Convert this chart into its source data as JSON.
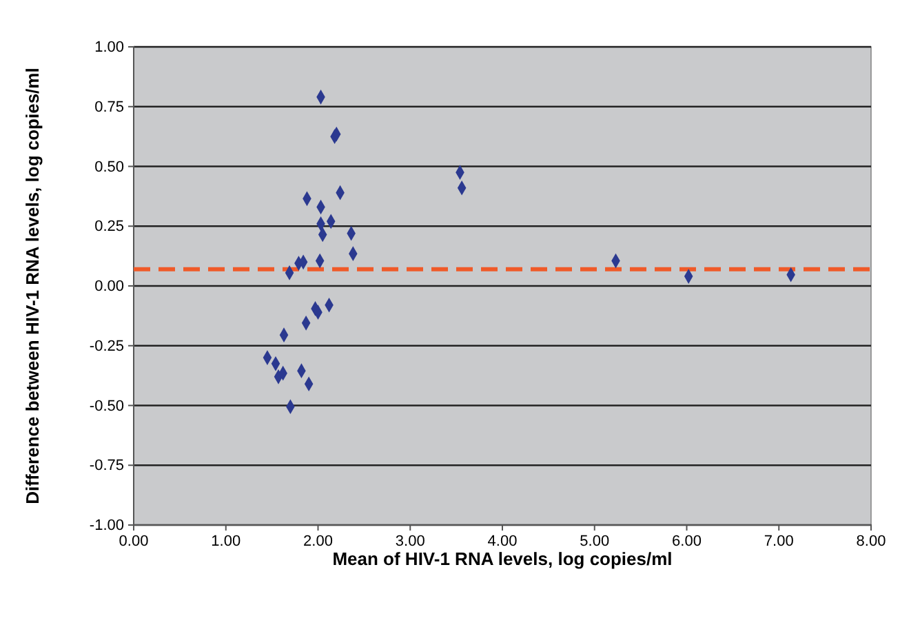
{
  "chart_data": {
    "type": "scatter",
    "xlabel": "Mean of HIV-1 RNA levels, log copies/ml",
    "ylabel": "Difference between HIV-1 RNA levels, log copies/ml",
    "x": [
      2.03,
      2.18,
      2.2,
      1.88,
      2.24,
      2.03,
      2.14,
      2.03,
      2.05,
      2.36,
      2.38,
      1.79,
      1.84,
      2.02,
      1.69,
      3.54,
      3.56,
      5.23,
      6.02,
      7.13,
      2.12,
      1.97,
      2.0,
      1.87,
      1.63,
      1.45,
      1.54,
      1.57,
      1.62,
      1.82,
      1.9,
      1.7
    ],
    "series": [
      {
        "color": "#2b3990",
        "values": [
          0.79,
          0.625,
          0.635,
          0.365,
          0.39,
          0.33,
          0.27,
          0.26,
          0.215,
          0.22,
          0.135,
          0.095,
          0.1,
          0.105,
          0.055,
          0.475,
          0.41,
          0.105,
          0.04,
          0.047,
          -0.08,
          -0.095,
          -0.11,
          -0.155,
          -0.205,
          -0.3,
          -0.325,
          -0.38,
          -0.365,
          -0.355,
          -0.41,
          -0.505
        ]
      }
    ],
    "marker": "diamond",
    "grid": "y",
    "xlim": [
      0,
      8
    ],
    "xticks": [
      {
        "value": 0,
        "label": "0.00"
      },
      {
        "value": 1,
        "label": "1.00"
      },
      {
        "value": 2,
        "label": "2.00"
      },
      {
        "value": 3,
        "label": "3.00"
      },
      {
        "value": 4,
        "label": "4.00"
      },
      {
        "value": 5,
        "label": "5.00"
      },
      {
        "value": 6,
        "label": "6.00"
      },
      {
        "value": 7,
        "label": "7.00"
      },
      {
        "value": 8,
        "label": "8.00"
      }
    ],
    "ylim": [
      -1,
      1
    ],
    "yticks": [
      {
        "value": -1,
        "label": "-1.00"
      },
      {
        "value": -0.75,
        "label": "-0.75"
      },
      {
        "value": -0.5,
        "label": "-0.50"
      },
      {
        "value": -0.25,
        "label": "-0.25"
      },
      {
        "value": 0,
        "label": "0.00"
      },
      {
        "value": 0.25,
        "label": "0.25"
      },
      {
        "value": 0.5,
        "label": "0.50"
      },
      {
        "value": 0.75,
        "label": "0.75"
      },
      {
        "value": 1,
        "label": "1.00"
      }
    ],
    "ref_lines": [
      {
        "axis": "y",
        "value": 0.07,
        "color": "#f05a28",
        "line_style": "dashed"
      }
    ]
  }
}
